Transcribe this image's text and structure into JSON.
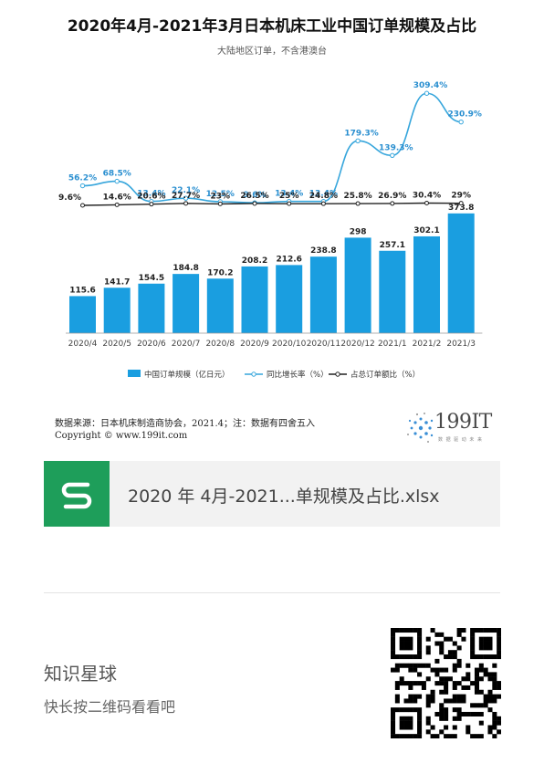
{
  "chart_data": {
    "type": "bar",
    "title": "2020年4月-2021年3月日本机床工业中国订单规模及占比",
    "subtitle": "大陆地区订单，不含港澳台",
    "categories": [
      "2020/4",
      "2020/5",
      "2020/6",
      "2020/7",
      "2020/8",
      "2020/9",
      "2020/10",
      "2020/11",
      "2020/12",
      "2021/1",
      "2021/2",
      "2021/3"
    ],
    "series": [
      {
        "name": "中国订单规模（亿日元）",
        "kind": "bar",
        "color": "#1a9ee0",
        "values": [
          115.6,
          141.7,
          154.5,
          184.8,
          170.2,
          208.2,
          212.6,
          238.8,
          298,
          257.1,
          302.1,
          373.8
        ],
        "labels": [
          "115.6",
          "141.7",
          "154.5",
          "184.8",
          "170.2",
          "208.2",
          "212.6",
          "238.8",
          "298",
          "257.1",
          "302.1",
          "373.8"
        ]
      },
      {
        "name": "同比增长率（%）",
        "kind": "line",
        "color": "#37a6dc",
        "values": [
          56.2,
          68.5,
          13.4,
          22.1,
          12.5,
          9.6,
          13.4,
          13.4,
          179.3,
          139.3,
          309.4,
          230.9
        ],
        "labels": [
          "56.2%",
          "68.5%",
          "13.4%",
          "22.1%",
          "12.5%",
          "9.6%",
          "13.4%",
          "13.4%",
          "179.3%",
          "139.3%",
          "309.4%",
          "230.9%"
        ]
      },
      {
        "name": "占总订单额比（%）",
        "kind": "line",
        "color": "#222222",
        "values": [
          9.6,
          14.6,
          20.6,
          27.7,
          23,
          26.5,
          25,
          24.8,
          25.8,
          26.9,
          30.4,
          29
        ],
        "labels": [
          "9.6%",
          "14.6%",
          "20.6%",
          "27.7%",
          "23%",
          "26.5%",
          "25%",
          "24.8%",
          "25.8%",
          "26.9%",
          "30.4%",
          "29%"
        ]
      }
    ],
    "ylim_bar": [
      0,
      420
    ],
    "grid": false,
    "legend_position": "bottom"
  },
  "source": {
    "line1": "数据来源：日本机床制造商协会，2021.4；注：数据有四舍五入",
    "line2": "Copyright ©     www.199it.com"
  },
  "brand": {
    "name": "199IT",
    "tagline": "数 据 驱 动 未 来"
  },
  "file_card": {
    "name": "2020 年 4月-2021...单规模及占比.xlsx",
    "icon": "file-s-icon",
    "color": "#1e9e5a"
  },
  "planet": {
    "title": "知识星球",
    "subtitle": "快长按二维码看看吧"
  },
  "qr": {
    "icon": "qr-code-icon"
  }
}
